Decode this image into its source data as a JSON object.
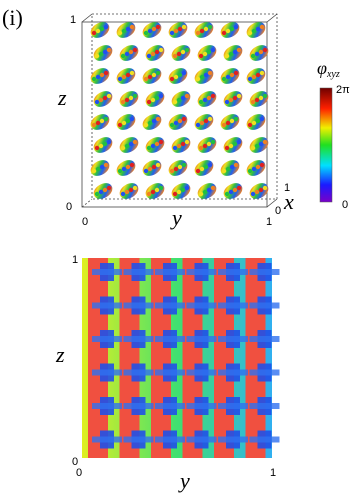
{
  "panel_label": "(i)",
  "top_plot": {
    "z_label": "z",
    "y_label": "y",
    "x_label": "x",
    "z_ticks": [
      "1",
      "0"
    ],
    "y_ticks": [
      "0",
      "1"
    ],
    "x_ticks": [
      "1",
      "0"
    ]
  },
  "colorbar": {
    "label": "φ",
    "label_sub": "xyz",
    "max_label": "2π",
    "min_label": "0"
  },
  "bottom_plot": {
    "z_label": "z",
    "y_label": "y",
    "z_ticks": [
      "1",
      "0"
    ],
    "y_ticks": [
      "0",
      "1"
    ]
  }
}
